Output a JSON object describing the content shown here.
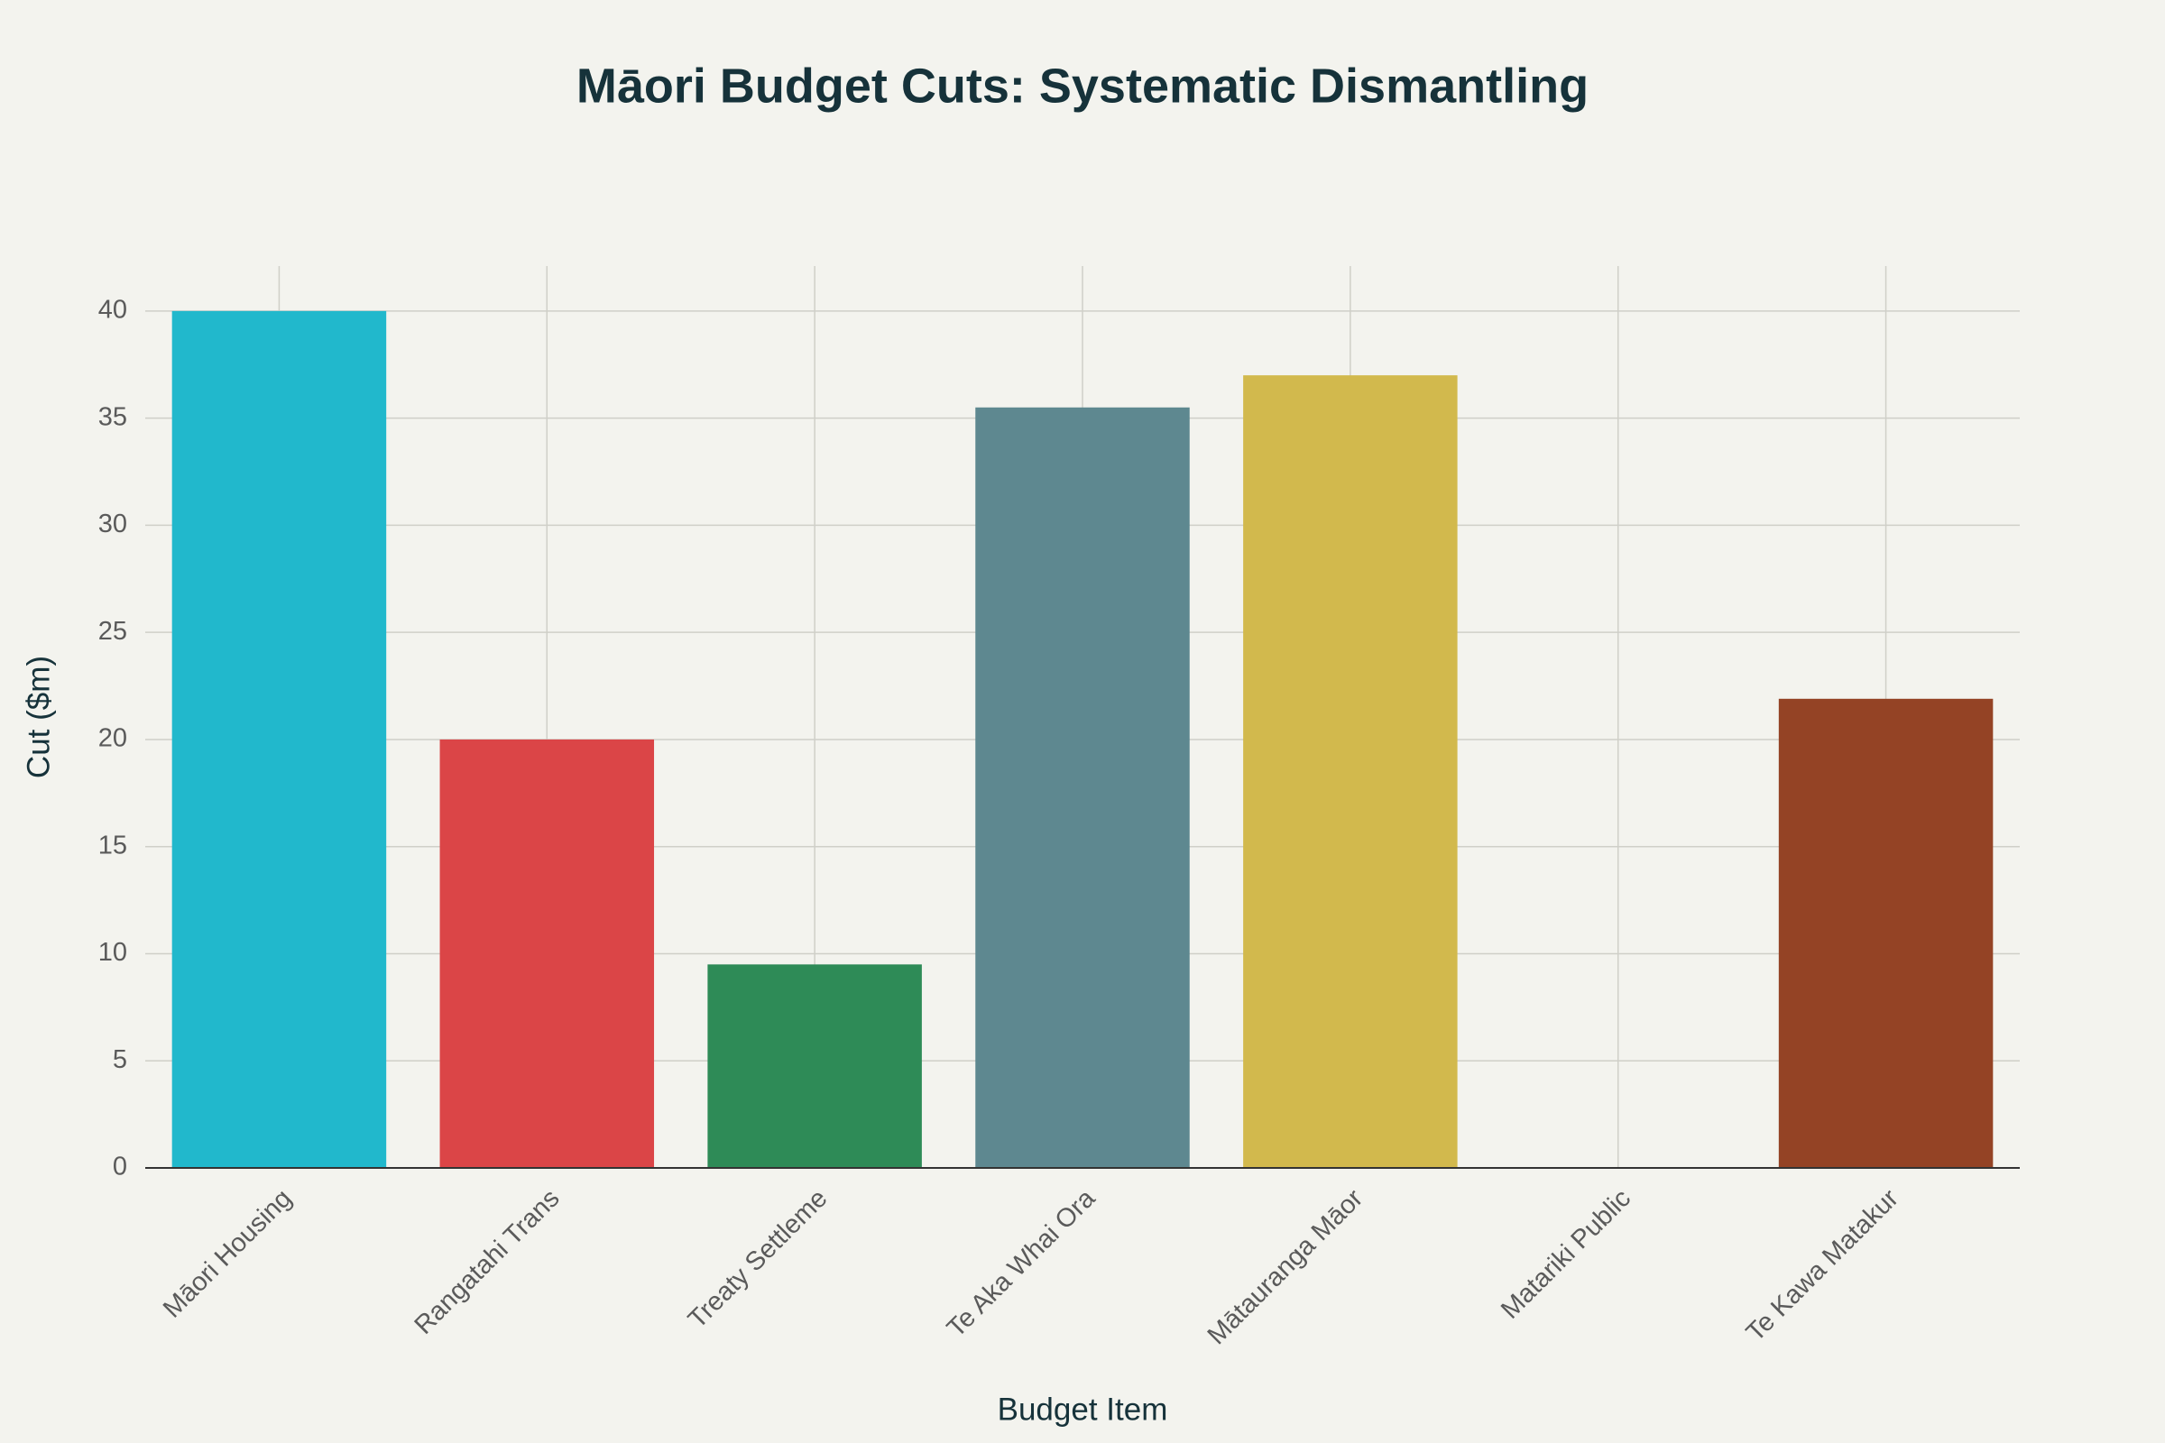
{
  "chart_data": {
    "type": "bar",
    "title": "Māori Budget Cuts: Systematic Dismantling",
    "x_label": "Budget Item",
    "y_label": "Cut ($m)",
    "categories": [
      "Māori Housing",
      "Rangatahi Trans",
      "Treaty Settleme",
      "Te Aka Whai Ora",
      "Mātauranga Māor",
      "Matariki Public",
      "Te Kawa Matakur"
    ],
    "values": [
      40,
      20,
      9.5,
      35.5,
      37,
      0,
      21.9
    ],
    "colors": [
      "#21b8cc",
      "#db4547",
      "#2e8b57",
      "#5e8890",
      "#d2b94d",
      null,
      "#944325"
    ],
    "ylim": [
      0,
      42.1
    ],
    "yticks": [
      0,
      5,
      10,
      15,
      20,
      25,
      30,
      35,
      40
    ],
    "grid": true
  }
}
